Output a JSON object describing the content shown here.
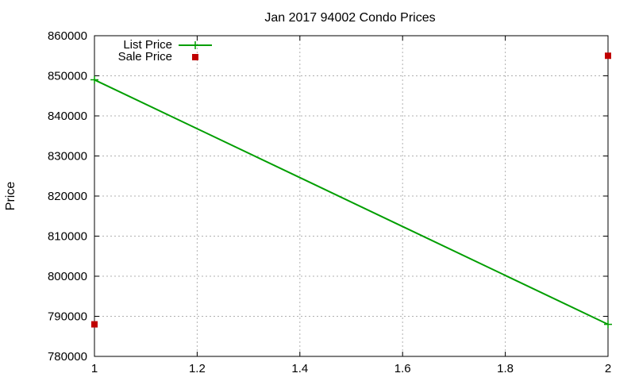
{
  "chart_data": {
    "type": "line",
    "title": "Jan 2017 94002 Condo Prices",
    "xlabel": "",
    "ylabel": "Price",
    "xlim": [
      1,
      2
    ],
    "ylim": [
      780000,
      860000
    ],
    "x_ticks": [
      "1",
      "1.2",
      "1.4",
      "1.6",
      "1.8",
      "2"
    ],
    "y_ticks": [
      "780000",
      "790000",
      "800000",
      "810000",
      "820000",
      "830000",
      "840000",
      "850000",
      "860000"
    ],
    "grid": true,
    "legend_position": "top-left",
    "series": [
      {
        "name": "List Price",
        "style": "linespoints",
        "color": "#009e00",
        "points": [
          {
            "x": 1,
            "y": 849000
          },
          {
            "x": 2,
            "y": 788000
          }
        ]
      },
      {
        "name": "Sale Price",
        "style": "points",
        "color": "#c00000",
        "points": [
          {
            "x": 1,
            "y": 788000
          },
          {
            "x": 2,
            "y": 855000
          }
        ]
      }
    ]
  }
}
